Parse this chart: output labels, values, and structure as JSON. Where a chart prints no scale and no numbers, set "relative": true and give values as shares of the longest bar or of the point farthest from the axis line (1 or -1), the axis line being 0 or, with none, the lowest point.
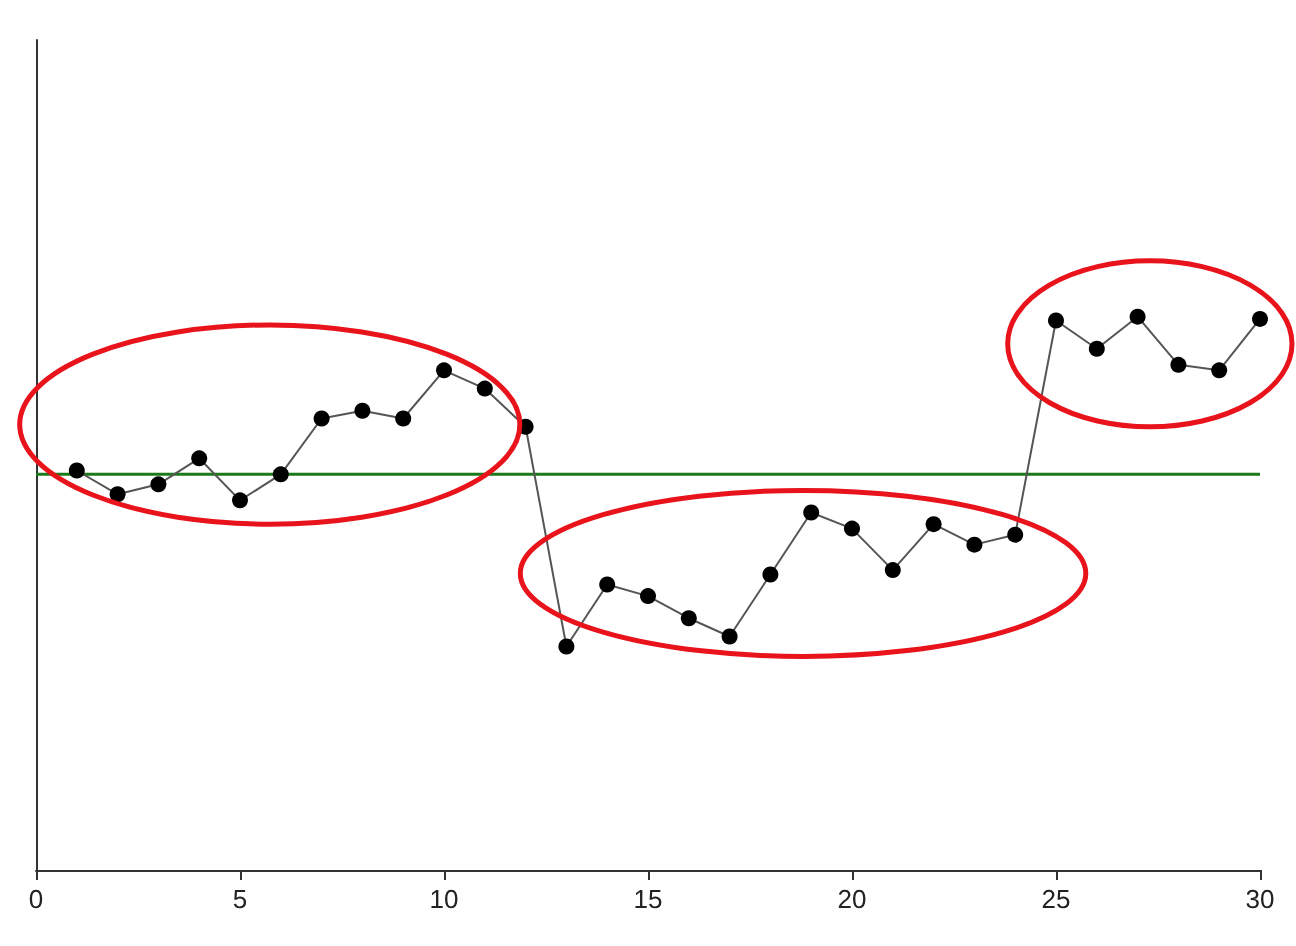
{
  "chart_data": {
    "type": "line",
    "relative": true,
    "x": [
      1,
      2,
      3,
      4,
      5,
      6,
      7,
      8,
      9,
      10,
      11,
      12,
      13,
      14,
      15,
      16,
      17,
      18,
      19,
      20,
      21,
      22,
      23,
      24,
      25,
      26,
      27,
      28,
      29,
      30
    ],
    "series": [
      {
        "color": "#000000",
        "values": [
          0.722,
          0.679,
          0.697,
          0.744,
          0.668,
          0.715,
          0.816,
          0.83,
          0.816,
          0.903,
          0.87,
          0.801,
          0.404,
          0.516,
          0.495,
          0.455,
          0.422,
          0.534,
          0.646,
          0.617,
          0.542,
          0.625,
          0.588,
          0.606,
          0.993,
          0.942,
          1,
          0.913,
          0.903,
          0.996
        ]
      }
    ],
    "xlim": [
      0,
      30
    ],
    "xticks": [
      0,
      5,
      10,
      15,
      20,
      25,
      30
    ],
    "grid": false,
    "marker": "circle",
    "line_style": "solid",
    "ref_lines": [
      {
        "axis": "y",
        "value": 0.715,
        "color": "#1a7a1a"
      }
    ]
  }
}
